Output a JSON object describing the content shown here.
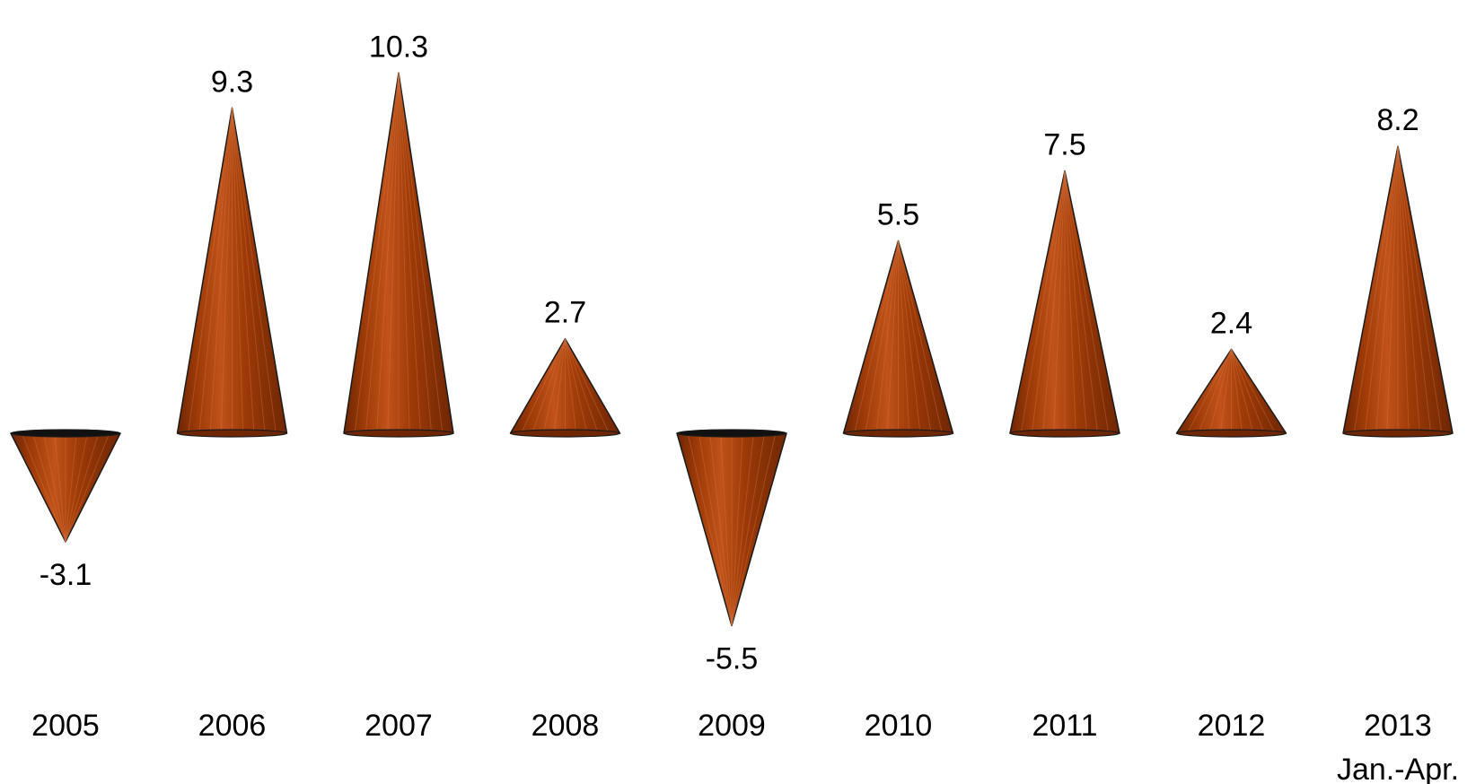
{
  "chart_data": {
    "type": "bar",
    "mark_shape": "cone",
    "categories": [
      "2005",
      "2006",
      "2007",
      "2008",
      "2009",
      "2010",
      "2011",
      "2012",
      "2013"
    ],
    "category_sublabels": [
      "",
      "",
      "",
      "",
      "",
      "",
      "",
      "",
      "Jan.-Apr."
    ],
    "values": [
      -3.1,
      9.3,
      10.3,
      2.7,
      -5.5,
      5.5,
      7.5,
      2.4,
      8.2
    ],
    "data_labels": [
      "-3.1",
      "9.3",
      "10.3",
      "2.7",
      "-5.5",
      "5.5",
      "7.5",
      "2.4",
      "8.2"
    ],
    "title": "",
    "xlabel": "",
    "ylabel": "",
    "ylim": [
      -6,
      11
    ],
    "grid": false,
    "legend": "none",
    "colors": {
      "fill_light": "#c0521a",
      "fill_mid": "#9c3a08",
      "fill_dark": "#6e2604",
      "outline": "#1a1a1a",
      "base_shadow": "#111111"
    }
  }
}
